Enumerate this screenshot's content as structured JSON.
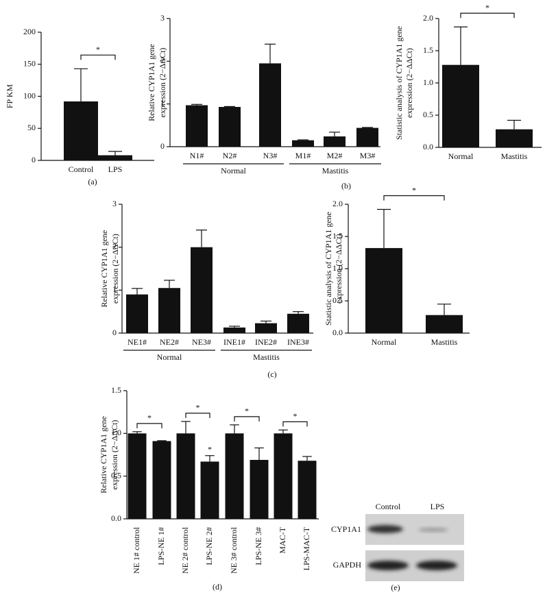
{
  "chart_data": [
    {
      "type": "bar",
      "panel_label": "(a)",
      "y_label_lines": [
        "FP KM"
      ],
      "categories": [
        "Control",
        "LPS"
      ],
      "values": [
        92,
        8
      ],
      "errors": [
        51,
        6
      ],
      "color": "#111111",
      "ylim": [
        0,
        200
      ],
      "yticks": [
        0,
        50,
        100,
        150,
        200
      ],
      "annotations": [
        "*"
      ]
    },
    {
      "type": "bar",
      "panel_label": "(b)",
      "y_label_lines": [
        "Relative CYP1A1 gene",
        "expression (2−ΔΔCt)"
      ],
      "categories": [
        "N1#",
        "N2#",
        "N3#",
        "M1#",
        "M2#",
        "M3#"
      ],
      "groups": [
        "Normal",
        "Mastitis"
      ],
      "values": [
        0.97,
        0.93,
        1.95,
        0.15,
        0.24,
        0.44
      ],
      "errors": [
        0.02,
        0.01,
        0.45,
        0.01,
        0.1,
        0.01
      ],
      "color": "#111111",
      "ylim": [
        0,
        3
      ],
      "yticks": [
        0,
        1,
        2,
        3
      ]
    },
    {
      "type": "bar",
      "y_label_lines": [
        "Statistic analysis of CYP1A1 gene",
        "expression (2−ΔΔCt)"
      ],
      "categories": [
        "Normal",
        "Mastitis"
      ],
      "values": [
        1.28,
        0.28
      ],
      "errors": [
        0.59,
        0.14
      ],
      "color": "#111111",
      "ylim": [
        0,
        2
      ],
      "yticks": [
        {
          "value": 0,
          "label": "0.0"
        },
        0.5,
        {
          "value": 1,
          "label": "1.0"
        },
        1.5,
        {
          "value": 2,
          "label": "2.0"
        }
      ],
      "annotations": [
        "*"
      ]
    },
    {
      "type": "bar",
      "panel_label": "(c)",
      "y_label_lines": [
        "Relative CYP1A1 gene",
        "expression (2−ΔΔCt)"
      ],
      "categories": [
        "NE1#",
        "NE2#",
        "NE3#",
        "INE1#",
        "INE2#",
        "INE3#"
      ],
      "groups": [
        "Normal",
        "Mastitis"
      ],
      "values": [
        0.9,
        1.05,
        2.0,
        0.13,
        0.23,
        0.45
      ],
      "errors": [
        0.14,
        0.18,
        0.4,
        0.03,
        0.05,
        0.05
      ],
      "color": "#111111",
      "ylim": [
        0,
        3
      ],
      "yticks": [
        0,
        1,
        2,
        3
      ]
    },
    {
      "type": "bar",
      "y_label_lines": [
        "Statistic analysis of CYP1A1 gene",
        "expression (2−ΔΔCt)"
      ],
      "categories": [
        "Normal",
        "Mastitis"
      ],
      "values": [
        1.32,
        0.28
      ],
      "errors": [
        0.6,
        0.17
      ],
      "color": "#111111",
      "ylim": [
        0,
        2
      ],
      "yticks": [
        {
          "value": 0,
          "label": "0.0"
        },
        0.5,
        {
          "value": 1,
          "label": "1.0"
        },
        1.5,
        {
          "value": 2,
          "label": "2.0"
        }
      ],
      "annotations": [
        "*"
      ]
    },
    {
      "type": "bar",
      "panel_label": "(d)",
      "y_label_lines": [
        "Relative CYP1A1 gene",
        "expression (2−ΔΔCt)"
      ],
      "categories": [
        "NE 1# control",
        "LPS-NE 1#",
        "NE 2# control",
        "LPS-NE 2#",
        "NE 3# control",
        "LPS-NE 3#",
        "MAC-T",
        "LPS-MAC-T"
      ],
      "values": [
        1.0,
        0.91,
        1.0,
        0.67,
        1.0,
        0.69,
        1.0,
        0.68
      ],
      "errors": [
        0.02,
        0.005,
        0.14,
        0.07,
        0.1,
        0.14,
        0.04,
        0.05
      ],
      "color": "#111111",
      "ylim": [
        0,
        1.5
      ],
      "yticks": [
        {
          "value": 0,
          "label": "0.0"
        },
        0.5,
        {
          "value": 1,
          "label": "1.0"
        },
        1.5
      ],
      "annotations": [
        "*",
        "*",
        "*",
        "*",
        "*"
      ]
    }
  ],
  "blot": {
    "panel_label": "(e)",
    "lanes": [
      "Control",
      "LPS"
    ],
    "rows": [
      "CYP1A1",
      "GAPDH"
    ]
  }
}
